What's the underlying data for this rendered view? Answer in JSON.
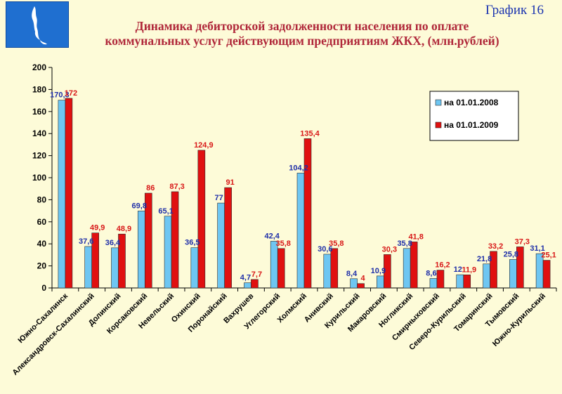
{
  "header": {
    "graph_number": "График 16",
    "title_line1": "Динамика дебиторской задолженности населения по оплате",
    "title_line2": "коммунальных услуг действующим предприятиям ЖКХ, (млн.рублей)"
  },
  "colors": {
    "series1": "#6ec6f2",
    "series2": "#e01010",
    "background": "#fdfbd8"
  },
  "chart_data": {
    "type": "bar",
    "ylim": [
      0,
      200
    ],
    "yticks": [
      0,
      20,
      40,
      60,
      80,
      100,
      120,
      140,
      160,
      180,
      200
    ],
    "grid": false,
    "legend_position": "top-right",
    "categories": [
      "Южно-Сахалинск",
      "Александровск-Сахалинский",
      "Долинский",
      "Корсаковский",
      "Невельский",
      "Охинский",
      "Поронайский",
      "Вахрушев",
      "Углегорский",
      "Холмский",
      "Анивский",
      "Курильский",
      "Макаровский",
      "Ногликский",
      "Смирныховский",
      "Северо-Курильский",
      "Томаринский",
      "Тымовский",
      "Южно-Курильский"
    ],
    "series": [
      {
        "name": "на 01.01.2008",
        "values": [
          170.3,
          37.6,
          36.4,
          69.8,
          65.1,
          36.5,
          77,
          4.7,
          42.4,
          104.2,
          30.6,
          8.4,
          10.9,
          35.8,
          8.6,
          12,
          21.8,
          25.8,
          31.1
        ],
        "labels": [
          "170,3",
          "37,6",
          "36,4",
          "69,8",
          "65,1",
          "36,5",
          "77",
          "4,7",
          "42,4",
          "104,2",
          "30,6",
          "8,4",
          "10,9",
          "35,8",
          "8,6",
          "12",
          "21,8",
          "25,8",
          "31,1"
        ]
      },
      {
        "name": "на 01.01.2009",
        "values": [
          172,
          49.9,
          48.9,
          86,
          87.3,
          124.9,
          91,
          7.7,
          35.8,
          135.4,
          35.8,
          4,
          30.3,
          41.8,
          16.2,
          11.9,
          33.2,
          37.3,
          25.1
        ],
        "labels": [
          "172",
          "49,9",
          "48,9",
          "86",
          "87,3",
          "124,9",
          "91",
          "7,7",
          "35,8",
          "135,4",
          "35,8",
          "4",
          "30,3",
          "41,8",
          "16,2",
          "11,9",
          "33,2",
          "37,3",
          "25,1"
        ]
      }
    ]
  }
}
